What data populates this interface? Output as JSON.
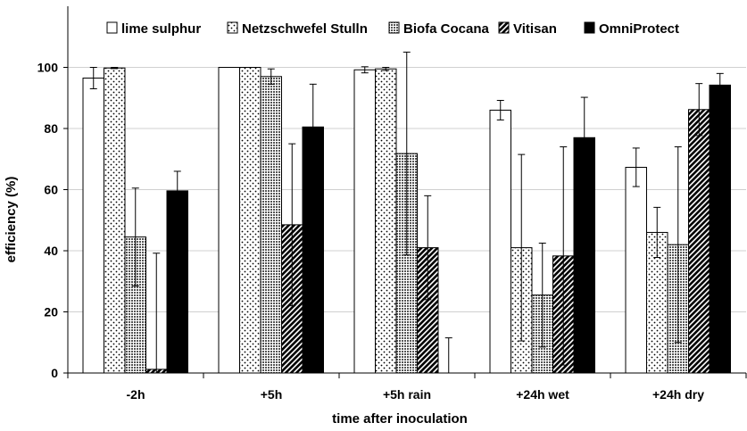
{
  "chart_data": {
    "type": "bar",
    "title": "",
    "xlabel": "time after inoculation",
    "ylabel": "efficiency (%)",
    "ylim": [
      0,
      120
    ],
    "yticks": [
      0,
      20,
      40,
      60,
      80,
      100
    ],
    "grid": true,
    "legend_position": "top",
    "categories": [
      "-2h",
      "+5h",
      "+5h rain",
      "+24h  wet",
      "+24h dry"
    ],
    "series": [
      {
        "name": "lime sulphur",
        "pattern": "white",
        "values": [
          96.5,
          100,
          99.2,
          86,
          67.3
        ],
        "errors": [
          3.5,
          0,
          1,
          3.2,
          6.3
        ]
      },
      {
        "name": "Netzschwefel Stulln",
        "pattern": "dots",
        "values": [
          99.8,
          100,
          99.5,
          41,
          46
        ],
        "errors": [
          0.2,
          0,
          0.5,
          30.5,
          8.2
        ]
      },
      {
        "name": "Biofa Cocana",
        "pattern": "grid",
        "values": [
          44.5,
          97,
          71.8,
          25.5,
          42
        ],
        "errors": [
          16,
          2.5,
          33.2,
          17,
          32
        ]
      },
      {
        "name": "Vitisan",
        "pattern": "diagonal",
        "values": [
          1.2,
          48.5,
          41,
          38.3,
          86.2
        ],
        "errors": [
          38,
          26.5,
          17,
          35.7,
          8.5
        ]
      },
      {
        "name": "OmniProtect",
        "pattern": "black",
        "values": [
          59.6,
          80.5,
          0,
          77,
          94.2
        ],
        "errors": [
          6.4,
          14,
          11.5,
          13.2,
          3.8
        ]
      }
    ]
  }
}
